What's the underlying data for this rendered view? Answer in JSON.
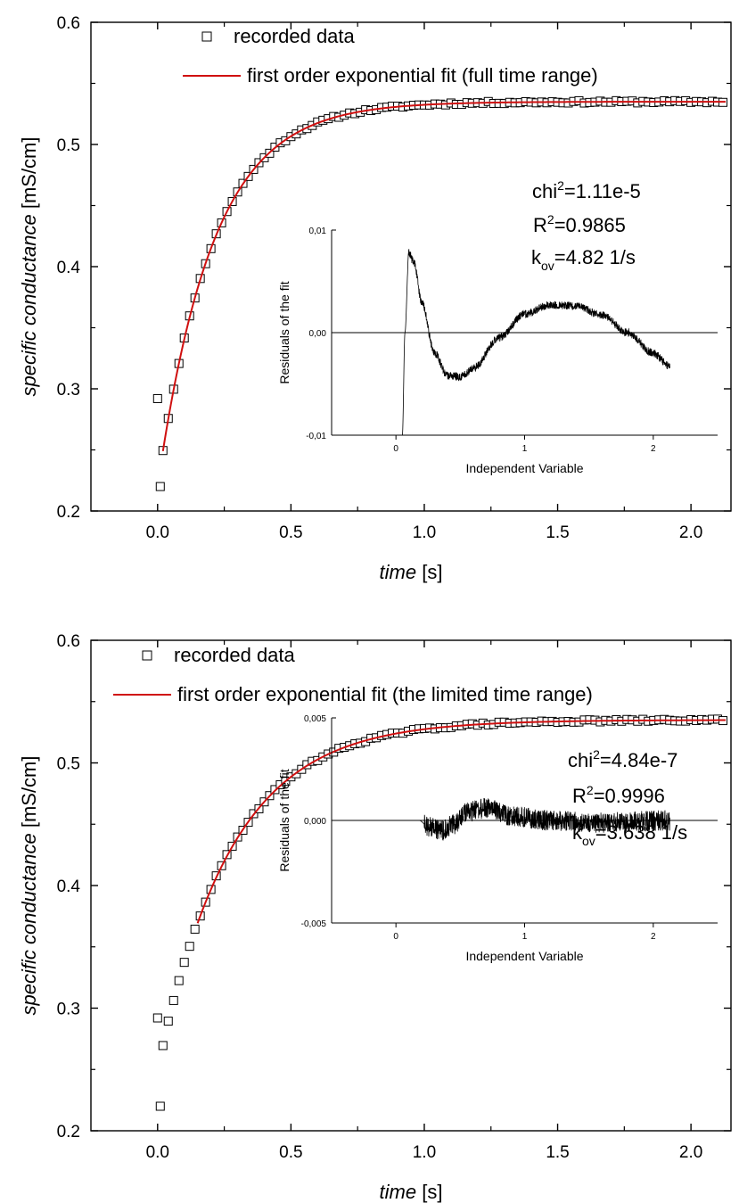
{
  "chart_data": [
    {
      "type": "scatter",
      "xlabel": "time",
      "xlabel_unit": "[s]",
      "ylabel": "specific conductance",
      "ylabel_unit": "[mS/cm]",
      "xlim": [
        -0.25,
        2.15
      ],
      "ylim": [
        0.2,
        0.6
      ],
      "xticks": [
        "0.0",
        "0.5",
        "1.0",
        "1.5",
        "2.0"
      ],
      "yticks": [
        "0.2",
        "0.3",
        "0.4",
        "0.5",
        "0.6"
      ],
      "legend": {
        "position": "top",
        "items": [
          "recorded data",
          "first order exponential fit (full time range)"
        ]
      },
      "series": [
        {
          "name": "recorded data",
          "marker": "open-square",
          "color": "#000000",
          "model": {
            "a": 0.535,
            "b": 0.285,
            "k": 4.82,
            "t0": 0.02,
            "t_start": 0.02,
            "t_end": 2.13,
            "step": 0.02
          },
          "extra_points": [
            {
              "x": 0.0,
              "y": 0.292
            },
            {
              "x": 0.01,
              "y": 0.22
            }
          ]
        },
        {
          "name": "first order exponential fit (full time range)",
          "line": true,
          "color": "#d01010",
          "model": {
            "a": 0.535,
            "b": 0.286,
            "k": 4.82,
            "t0": 0.02,
            "t_start": 0.02,
            "t_end": 2.13
          }
        }
      ],
      "annotations": {
        "chi2": {
          "label": "chi",
          "sup": "2",
          "value": "=1.11e-5"
        },
        "r2": {
          "label": "R",
          "sup": "2",
          "value": "=0.9865"
        },
        "kov": {
          "label": "k",
          "sub": "ov",
          "value": "=4.82 1/s"
        }
      },
      "inset": {
        "type": "line",
        "xlabel": "Independent Variable",
        "ylabel": "Residuals of the fit",
        "xlim": [
          -0.5,
          2.5
        ],
        "ylim": [
          -0.01,
          0.01
        ],
        "xticks": [
          "0",
          "1",
          "2"
        ],
        "yticks": [
          "-0,01",
          "0,00",
          "0,01"
        ],
        "reference_line_y": 0,
        "color": "#000000",
        "curve": [
          {
            "x": 0.05,
            "y": -0.01
          },
          {
            "x": 0.07,
            "y": 0.0
          },
          {
            "x": 0.1,
            "y": 0.0078
          },
          {
            "x": 0.14,
            "y": 0.0068
          },
          {
            "x": 0.2,
            "y": 0.003
          },
          {
            "x": 0.3,
            "y": -0.002
          },
          {
            "x": 0.4,
            "y": -0.0042
          },
          {
            "x": 0.5,
            "y": -0.0043
          },
          {
            "x": 0.6,
            "y": -0.0035
          },
          {
            "x": 0.8,
            "y": -0.0005
          },
          {
            "x": 1.0,
            "y": 0.0018
          },
          {
            "x": 1.2,
            "y": 0.0027
          },
          {
            "x": 1.4,
            "y": 0.0026
          },
          {
            "x": 1.6,
            "y": 0.0017
          },
          {
            "x": 1.8,
            "y": 0.0
          },
          {
            "x": 2.0,
            "y": -0.002
          },
          {
            "x": 2.13,
            "y": -0.0033
          }
        ],
        "noise": 0.0004
      }
    },
    {
      "type": "scatter",
      "xlabel": "time",
      "xlabel_unit": "[s]",
      "ylabel": "specific conductance",
      "ylabel_unit": "[mS/cm]",
      "xlim": [
        -0.25,
        2.15
      ],
      "ylim": [
        0.2,
        0.6
      ],
      "xticks": [
        "0.0",
        "0.5",
        "1.0",
        "1.5",
        "2.0"
      ],
      "yticks": [
        "0.2",
        "0.3",
        "0.4",
        "0.5",
        "0.6"
      ],
      "legend": {
        "position": "top",
        "items": [
          "recorded data",
          "first order exponential fit (the limited time range)"
        ]
      },
      "series": [
        {
          "name": "recorded data",
          "marker": "open-square",
          "color": "#000000",
          "model": {
            "a": 0.535,
            "b": 0.285,
            "k": 3.638,
            "t0": 0.0,
            "t_start": 0.02,
            "t_end": 2.13,
            "step": 0.02
          },
          "extra_points": [
            {
              "x": 0.0,
              "y": 0.292
            },
            {
              "x": 0.01,
              "y": 0.22
            }
          ]
        },
        {
          "name": "first order exponential fit (the limited time range)",
          "line": true,
          "color": "#d01010",
          "model": {
            "a": 0.535,
            "b": 0.286,
            "k": 3.638,
            "t0": 0.0,
            "t_start": 0.15,
            "t_end": 2.13
          }
        }
      ],
      "annotations": {
        "chi2": {
          "label": "chi",
          "sup": "2",
          "value": "=4.84e-7"
        },
        "r2": {
          "label": "R",
          "sup": "2",
          "value": "=0.9996"
        },
        "kov": {
          "label": "k",
          "sub": "ov",
          "value": "=3.638 1/s"
        }
      },
      "inset": {
        "type": "line",
        "xlabel": "Independent Variable",
        "ylabel": "Residuals of the fit",
        "xlim": [
          -0.5,
          2.5
        ],
        "ylim": [
          -0.005,
          0.005
        ],
        "xticks": [
          "0",
          "1",
          "2"
        ],
        "yticks": [
          "-0,005",
          "0,000",
          "0,005"
        ],
        "reference_line_y": 0,
        "color": "#000000",
        "curve": [
          {
            "x": 0.18,
            "y": 0.0
          },
          {
            "x": 0.25,
            "y": -0.0003
          },
          {
            "x": 0.35,
            "y": -0.0005
          },
          {
            "x": 0.45,
            "y": -0.0002
          },
          {
            "x": 0.55,
            "y": 0.0004
          },
          {
            "x": 0.7,
            "y": 0.0006
          },
          {
            "x": 0.9,
            "y": 0.0002
          },
          {
            "x": 1.2,
            "y": 0.0
          },
          {
            "x": 1.6,
            "y": -0.0001
          },
          {
            "x": 2.13,
            "y": 0.0
          }
        ],
        "noise": 0.0005
      }
    }
  ]
}
